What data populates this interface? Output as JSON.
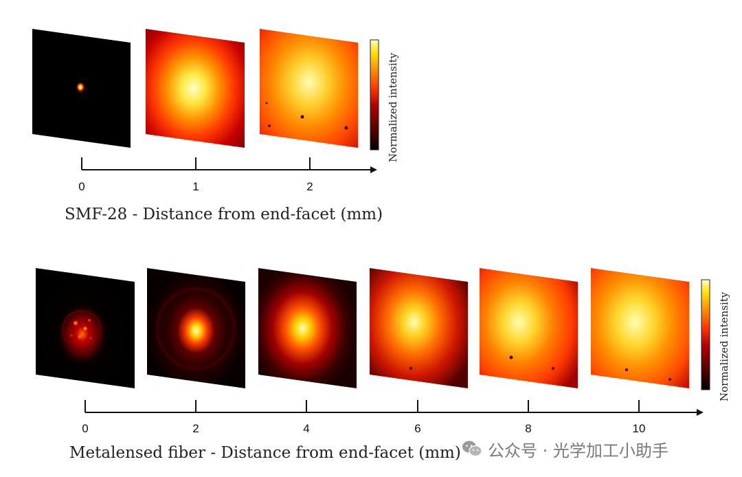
{
  "top_row": {
    "caption": "SMF-28 - Distance from end-facet (mm)",
    "ticks": [
      "0",
      "1",
      "2"
    ],
    "colorbar_label": "Normalized intensity"
  },
  "bottom_row": {
    "caption": "Metalensed fiber - Distance from end-facet (mm)",
    "ticks": [
      "0",
      "2",
      "4",
      "6",
      "8",
      "10"
    ],
    "colorbar_label": "Normalized intensity"
  },
  "watermark": {
    "text": "公众号 · 光学加工小助手",
    "icon": "wechat-icon"
  },
  "colors": {
    "colormap": [
      "#000000",
      "#5a0000",
      "#b00000",
      "#ff3000",
      "#ff8a00",
      "#ffe000",
      "#ffffc0"
    ],
    "axis": "#111111"
  }
}
